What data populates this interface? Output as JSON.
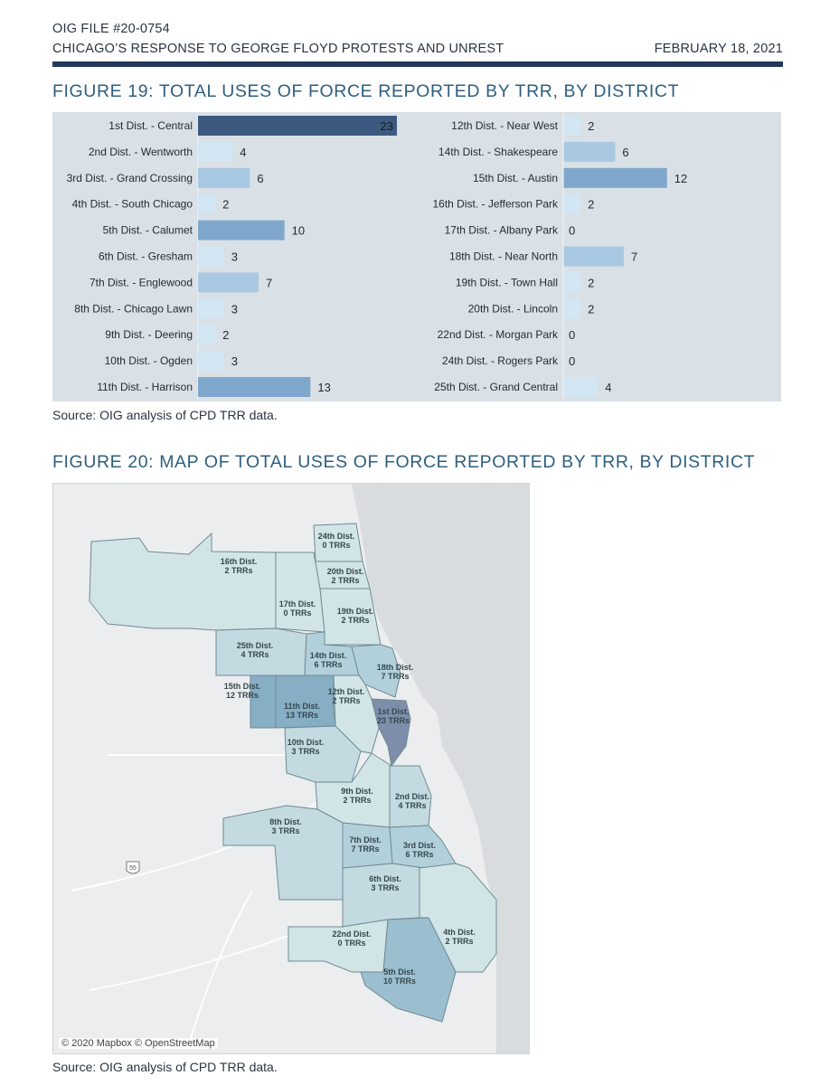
{
  "header": {
    "file": "OIG FILE #20-0754",
    "title": "CHICAGO’S RESPONSE TO GEORGE FLOYD PROTESTS AND UNREST",
    "date": "FEBRUARY 18, 2021"
  },
  "figure19": {
    "title": "FIGURE 19: TOTAL USES OF FORCE REPORTED BY TRR, BY DISTRICT",
    "source": "Source: OIG analysis of CPD TRR data."
  },
  "figure20": {
    "title": "FIGURE 20: MAP OF TOTAL USES OF FORCE REPORTED BY TRR, BY DISTRICT",
    "source": "Source: OIG analysis of CPD TRR data.",
    "credit": "© 2020 Mapbox © OpenStreetMap",
    "highway_shield": "55",
    "districts": [
      {
        "line1": "24th Dist.",
        "line2": "0 TRRs",
        "value": 0
      },
      {
        "line1": "16th Dist.",
        "line2": "2 TRRs",
        "value": 2
      },
      {
        "line1": "20th Dist.",
        "line2": "2 TRRs",
        "value": 2
      },
      {
        "line1": "17th Dist.",
        "line2": "0 TRRs",
        "value": 0
      },
      {
        "line1": "19th Dist.",
        "line2": "2 TRRs",
        "value": 2
      },
      {
        "line1": "25th Dist.",
        "line2": "4 TRRs",
        "value": 4
      },
      {
        "line1": "14th Dist.",
        "line2": "6 TRRs",
        "value": 6
      },
      {
        "line1": "18th Dist.",
        "line2": "7 TRRs",
        "value": 7
      },
      {
        "line1": "15th Dist.",
        "line2": "12 TRRs",
        "value": 12
      },
      {
        "line1": "11th Dist.",
        "line2": "13 TRRs",
        "value": 13
      },
      {
        "line1": "12th Dist.",
        "line2": "2 TRRs",
        "value": 2
      },
      {
        "line1": "1st Dist.",
        "line2": "23 TRRs",
        "value": 23
      },
      {
        "line1": "10th Dist.",
        "line2": "3 TRRs",
        "value": 3
      },
      {
        "line1": "9th Dist.",
        "line2": "2 TRRs",
        "value": 2
      },
      {
        "line1": "2nd Dist.",
        "line2": "4 TRRs",
        "value": 4
      },
      {
        "line1": "8th Dist.",
        "line2": "3 TRRs",
        "value": 3
      },
      {
        "line1": "7th Dist.",
        "line2": "7 TRRs",
        "value": 7
      },
      {
        "line1": "3rd Dist.",
        "line2": "6 TRRs",
        "value": 6
      },
      {
        "line1": "6th Dist.",
        "line2": "3 TRRs",
        "value": 3
      },
      {
        "line1": "22nd Dist.",
        "line2": "0 TRRs",
        "value": 0
      },
      {
        "line1": "4th Dist.",
        "line2": "2 TRRs",
        "value": 2
      },
      {
        "line1": "5th Dist.",
        "line2": "10 TRRs",
        "value": 10
      }
    ]
  },
  "colors": {
    "max_bar": "#3c5a80",
    "high_bar": "#7fa7cc",
    "mid_bar": "#a9c9e2",
    "low_bar": "#d2e6f3",
    "panel": "#d9e0e6",
    "title": "#2e5f80",
    "rule": "#22395a"
  },
  "chart_data": {
    "type": "bar",
    "orientation": "horizontal",
    "title": "FIGURE 19: TOTAL USES OF FORCE REPORTED BY TRR, BY DISTRICT",
    "xlim": [
      0,
      23
    ],
    "grid": false,
    "panels": [
      {
        "categories": [
          "1st Dist. - Central",
          "2nd Dist. - Wentworth",
          "3rd Dist. - Grand Crossing",
          "4th Dist. - South Chicago",
          "5th Dist. - Calumet",
          "6th Dist. - Gresham",
          "7th Dist. - Englewood",
          "8th Dist. - Chicago Lawn",
          "9th Dist. - Deering",
          "10th Dist. - Ogden",
          "11th Dist. - Harrison"
        ],
        "values": [
          23,
          4,
          6,
          2,
          10,
          3,
          7,
          3,
          2,
          3,
          13
        ]
      },
      {
        "categories": [
          "12th Dist. - Near West",
          "14th Dist. - Shakespeare",
          "15th Dist. - Austin",
          "16th Dist. - Jefferson Park",
          "17th Dist. - Albany Park",
          "18th Dist. - Near North",
          "19th Dist. - Town Hall",
          "20th Dist. - Lincoln",
          "22nd Dist. - Morgan Park",
          "24th Dist. - Rogers Park",
          "25th Dist. - Grand Central"
        ],
        "values": [
          2,
          6,
          12,
          2,
          0,
          7,
          2,
          2,
          0,
          0,
          4
        ]
      }
    ]
  }
}
